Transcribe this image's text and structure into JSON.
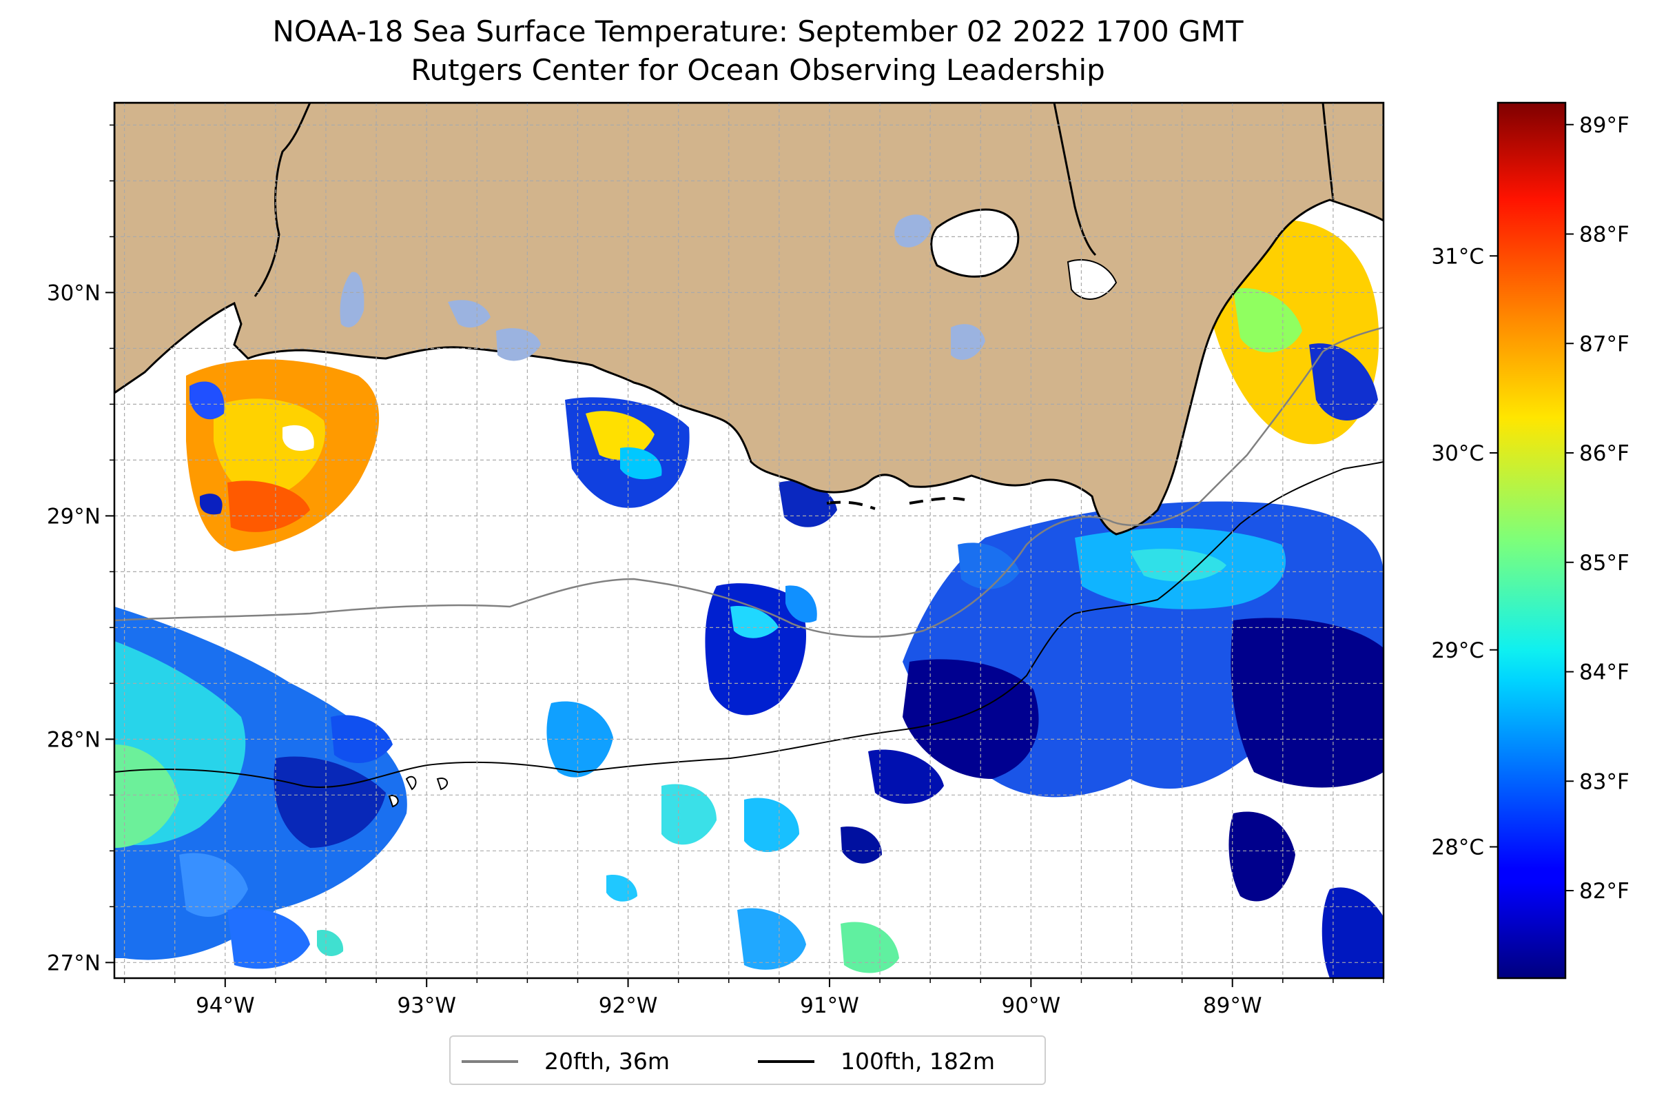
{
  "title": "NOAA-18 Sea Surface Temperature: September 02 2022 1700 GMT",
  "subtitle": "Rutgers Center for Ocean Observing Leadership",
  "map": {
    "lon_range": [
      -94.55,
      -88.25
    ],
    "lat_range": [
      26.93,
      30.85
    ],
    "lon_ticks": [
      "94°W",
      "93°W",
      "92°W",
      "91°W",
      "90°W",
      "89°W"
    ],
    "lon_tick_values": [
      -94,
      -93,
      -92,
      -91,
      -90,
      -89
    ],
    "lat_ticks": [
      "27°N",
      "28°N",
      "29°N",
      "30°N"
    ],
    "lat_tick_values": [
      27,
      28,
      29,
      30
    ],
    "gridlines": "dashed",
    "colors": {
      "land": "#d2b48c",
      "lakes": "#9bb3e0",
      "ocean_no_data": "#ffffff",
      "coastline": "#000000"
    }
  },
  "colorbar": {
    "colormap": "jet",
    "fahrenheit_labels": [
      "89°F",
      "88°F",
      "87°F",
      "86°F",
      "85°F",
      "84°F",
      "83°F",
      "82°F"
    ],
    "fahrenheit_values": [
      89,
      88,
      87,
      86,
      85,
      84,
      83,
      82
    ],
    "celsius_labels": [
      "31°C",
      "30°C",
      "29°C",
      "28°C"
    ],
    "celsius_values": [
      31,
      30,
      29,
      28
    ],
    "range_f": [
      81.2,
      89.2
    ]
  },
  "legend": {
    "items": [
      {
        "label": "20fth, 36m",
        "color": "#808080"
      },
      {
        "label": "100fth, 182m",
        "color": "#000000"
      }
    ],
    "placement": "bottom-center"
  }
}
